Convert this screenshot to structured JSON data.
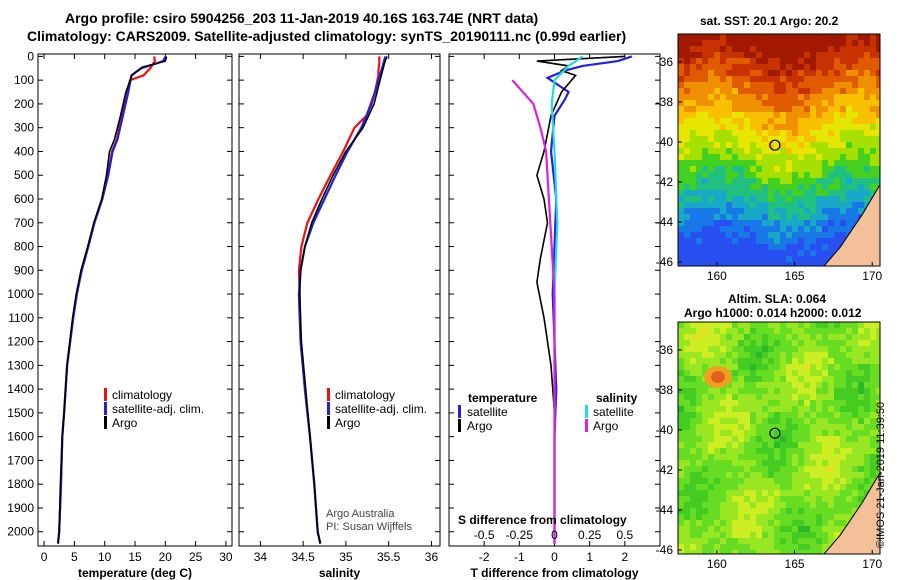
{
  "title": {
    "line1": "Argo profile: csiro 5904256_203 11-Jan-2019 40.16S 163.74E (NRT data)",
    "line2": "Climatology: CARS2009. Satellite-adjusted climatology: synTS_20190111.nc (0.99d earlier)"
  },
  "depth_ticks": [
    "0",
    "100",
    "200",
    "300",
    "400",
    "500",
    "600",
    "700",
    "800",
    "900",
    "1000",
    "1100",
    "1200",
    "1300",
    "1400",
    "1500",
    "1600",
    "1700",
    "1800",
    "1900",
    "2000"
  ],
  "colors": {
    "red": "#ee1111",
    "blue": "#2222dd",
    "black": "#000000",
    "cyan": "#22dddd",
    "magenta": "#dd22dd"
  },
  "chart_data": [
    {
      "type": "line",
      "id": "temperature",
      "xlabel": "temperature (deg C)",
      "ylabel": "",
      "xlim": [
        -1,
        31
      ],
      "ylim": [
        2060,
        -10
      ],
      "x_ticks": [
        "0",
        "5",
        "10",
        "15",
        "20",
        "25",
        "30"
      ],
      "legend": [
        "climatology",
        "satellite-adj. clim.",
        "Argo"
      ],
      "series": [
        {
          "name": "climatology",
          "color": "red",
          "x": [
            18.2,
            18.2,
            18.3,
            18.0,
            17.5,
            16.4,
            14.2,
            13.7,
            12.8,
            12.0,
            11.2,
            10.5,
            9.6,
            8.3,
            7.3,
            6.2,
            5.4,
            4.8,
            3.8,
            3.3,
            3.0,
            2.8,
            2.5,
            2.3
          ],
          "y": [
            0,
            10,
            20,
            30,
            50,
            80,
            100,
            150,
            250,
            350,
            400,
            500,
            600,
            700,
            800,
            900,
            1000,
            1100,
            1300,
            1500,
            1600,
            1800,
            2000,
            2050
          ]
        },
        {
          "name": "satellite-adj. clim.",
          "color": "blue",
          "x": [
            20.1,
            19.6,
            18.5,
            16.0,
            14.4,
            13.9,
            13.0,
            12.1,
            11.3,
            10.6,
            9.6,
            8.3,
            7.3,
            6.2,
            5.4,
            4.8,
            3.8,
            3.3,
            3.0,
            2.8,
            2.5,
            2.3
          ],
          "y": [
            0,
            20,
            30,
            50,
            80,
            150,
            250,
            350,
            400,
            500,
            600,
            700,
            800,
            900,
            1000,
            1100,
            1300,
            1500,
            1600,
            1800,
            2000,
            2050
          ]
        },
        {
          "name": "Argo",
          "color": "black",
          "x": [
            20.2,
            20.0,
            18.6,
            16.2,
            14.5,
            13.5,
            12.6,
            11.6,
            10.8,
            10.3,
            9.5,
            8.2,
            7.2,
            6.1,
            5.3,
            4.7,
            3.8,
            3.3,
            3.0,
            2.7,
            2.5,
            2.3
          ],
          "y": [
            0,
            20,
            30,
            45,
            80,
            150,
            250,
            350,
            400,
            500,
            600,
            700,
            800,
            900,
            1000,
            1100,
            1300,
            1500,
            1600,
            1800,
            2000,
            2050
          ]
        }
      ]
    },
    {
      "type": "line",
      "id": "salinity",
      "xlabel": "salinity",
      "ylabel": "",
      "xlim": [
        33.75,
        36.1
      ],
      "ylim": [
        2060,
        -10
      ],
      "x_ticks": [
        "34",
        "34.5",
        "35",
        "35.5",
        "36"
      ],
      "legend": [
        "climatology",
        "satellite-adj. clim.",
        "Argo"
      ],
      "annotation": [
        "Argo Australia",
        "PI: Susan Wijffels"
      ],
      "series": [
        {
          "name": "climatology",
          "color": "red",
          "x": [
            35.39,
            35.39,
            35.38,
            35.38,
            35.34,
            35.24,
            35.1,
            34.97,
            34.82,
            34.68,
            34.55,
            34.48,
            34.45,
            34.46,
            34.47,
            34.52,
            34.58,
            34.63,
            34.67,
            34.7
          ],
          "y": [
            0,
            30,
            60,
            80,
            150,
            250,
            300,
            400,
            500,
            600,
            700,
            800,
            900,
            1000,
            1200,
            1400,
            1600,
            1800,
            2000,
            2050
          ]
        },
        {
          "name": "satellite-adj. clim.",
          "color": "blue",
          "x": [
            35.46,
            35.43,
            35.38,
            35.3,
            35.18,
            35.02,
            34.88,
            34.75,
            34.62,
            34.52,
            34.47,
            34.45,
            34.46,
            34.47,
            34.52,
            34.58,
            34.63,
            34.67,
            34.7
          ],
          "y": [
            0,
            40,
            100,
            200,
            300,
            400,
            500,
            600,
            700,
            800,
            900,
            1000,
            1100,
            1200,
            1400,
            1600,
            1800,
            2000,
            2050
          ]
        },
        {
          "name": "Argo",
          "color": "black",
          "x": [
            35.48,
            35.45,
            35.4,
            35.33,
            35.2,
            35.0,
            34.85,
            34.72,
            34.6,
            34.52,
            34.47,
            34.46,
            34.48,
            34.53,
            34.58,
            34.63,
            34.67,
            34.7
          ],
          "y": [
            0,
            30,
            100,
            200,
            300,
            400,
            500,
            600,
            700,
            800,
            900,
            1000,
            1200,
            1400,
            1600,
            1800,
            2000,
            2050
          ]
        }
      ]
    },
    {
      "type": "line",
      "id": "difference",
      "xlabel": "T difference from climatology",
      "top_axis_label": "S difference from climatology",
      "xlim": [
        -3,
        3
      ],
      "ylim": [
        2060,
        -10
      ],
      "x_ticks": [
        "-2",
        "-1",
        "0",
        "1",
        "2"
      ],
      "s_ticks": [
        "-0.5",
        "-0.25",
        "0",
        "0.25",
        "0.5"
      ],
      "legend_left_header": "temperature",
      "legend_right_header": "salinity",
      "legend_left": [
        "satellite",
        "Argo"
      ],
      "legend_right": [
        "satellite",
        "Argo"
      ],
      "series": [
        {
          "name": "T satellite",
          "color": "blue",
          "x": [
            2.2,
            1.8,
            0.8,
            0.3,
            -0.2,
            0.1,
            0.4,
            0.3,
            0.0,
            -0.1,
            0.05,
            0.0,
            -0.05,
            0.0,
            0.05,
            0.0,
            0.0,
            0.0
          ],
          "y": [
            0,
            20,
            40,
            60,
            90,
            120,
            150,
            180,
            250,
            400,
            600,
            800,
            1000,
            1200,
            1400,
            1600,
            1800,
            2050
          ]
        },
        {
          "name": "T Argo",
          "color": "black",
          "x": [
            2.0,
            -0.5,
            0.4,
            0.2,
            0.6,
            0.2,
            -0.1,
            -0.3,
            -0.5,
            -0.3,
            -0.2,
            -0.4,
            -0.5,
            -0.3,
            -0.1,
            0.0,
            0.0,
            0.0
          ],
          "y": [
            0,
            20,
            40,
            60,
            80,
            150,
            250,
            400,
            500,
            600,
            700,
            850,
            950,
            1100,
            1300,
            1500,
            1800,
            2050
          ]
        },
        {
          "name": "S satellite",
          "color": "cyan",
          "x": [
            0.2,
            0.1,
            0.0,
            -0.02,
            0.0,
            0.02,
            0.0,
            0.0,
            0.0
          ],
          "y": [
            0,
            40,
            100,
            200,
            400,
            700,
            1000,
            1500,
            2050
          ]
        },
        {
          "name": "S Argo",
          "color": "magenta",
          "x": [
            -0.3,
            -0.15,
            -0.1,
            -0.06,
            -0.04,
            -0.02,
            0.0,
            0.0,
            0.0
          ],
          "y": [
            100,
            200,
            300,
            400,
            600,
            800,
            1000,
            1500,
            2050
          ]
        }
      ]
    }
  ],
  "maps": {
    "sst": {
      "title": "sat. SST: 20.1 Argo: 20.2",
      "x_ticks": [
        "160",
        "165",
        "170"
      ],
      "y_ticks": [
        "-36",
        "-38",
        "-40",
        "-42",
        "-44",
        "-46"
      ],
      "lon_range": [
        157.5,
        170.5
      ],
      "lat_range": [
        -46.2,
        -34.6
      ],
      "argo_location": {
        "lon": 163.74,
        "lat": -40.16
      }
    },
    "sla": {
      "title1": "Altim. SLA: 0.064",
      "title2": "Argo h1000: 0.014 h2000: 0.012",
      "x_ticks": [
        "160",
        "165",
        "170"
      ],
      "y_ticks": [
        "-36",
        "-38",
        "-40",
        "-42",
        "-44",
        "-46"
      ],
      "lon_range": [
        157.5,
        170.5
      ],
      "lat_range": [
        -46.2,
        -34.6
      ],
      "argo_location": {
        "lon": 163.74,
        "lat": -40.16
      }
    }
  },
  "timestamp": "©IMOS 21-Jan-2019 11:39:50"
}
